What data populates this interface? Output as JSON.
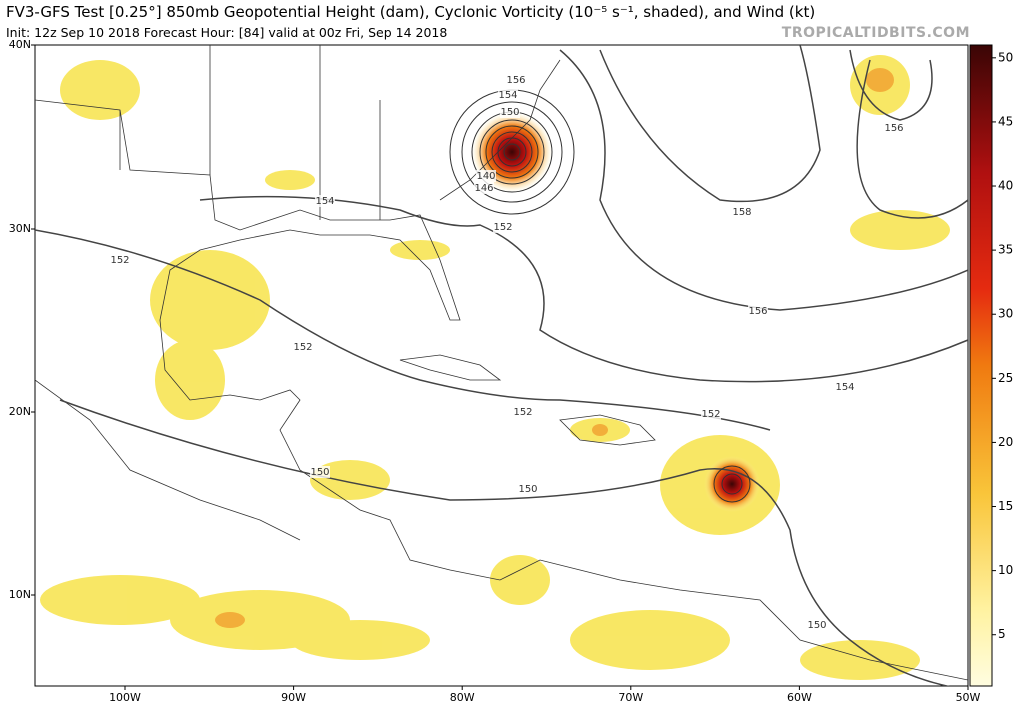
{
  "header": {
    "title": "FV3-GFS Test [0.25°] 850mb Geopotential Height (dam), Cyclonic Vorticity (10⁻⁵ s⁻¹, shaded), and Wind (kt)",
    "subtitle": "Init: 12z Sep 10 2018   Forecast Hour: [84]   valid at 00z Fri, Sep 14 2018",
    "watermark": "TROPICALTIDBITS.COM"
  },
  "map": {
    "lat_labels": [
      "40N",
      "30N",
      "20N",
      "10N"
    ],
    "lon_labels": [
      "100W",
      "90W",
      "80W",
      "70W",
      "60W",
      "50W"
    ],
    "contour_labels": [
      "156",
      "154",
      "150",
      "140",
      "146",
      "152",
      "154",
      "152",
      "152",
      "152",
      "152",
      "150",
      "150",
      "156",
      "158",
      "156",
      "154",
      "150"
    ]
  },
  "colorbar": {
    "range": [
      1,
      51
    ],
    "ticks": [
      5,
      10,
      15,
      20,
      25,
      30,
      35,
      40,
      45,
      50
    ]
  }
}
